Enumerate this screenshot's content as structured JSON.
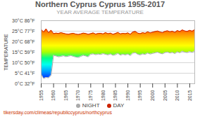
{
  "chart_data": {
    "type": "area",
    "title": "Northern Cyprus Cyprus 1955-2017",
    "subtitle": "YEAR AVERAGE TEMPERATURE",
    "ylabel": "TEMPERATURE",
    "caption": "tikersday.com/climeas/republiccyprus/northcyprus",
    "x": [
      1955,
      1956,
      1957,
      1958,
      1959,
      1960,
      1961,
      1962,
      1963,
      1964,
      1965,
      1966,
      1967,
      1968,
      1969,
      1970,
      1971,
      1972,
      1973,
      1974,
      1975,
      1976,
      1977,
      1978,
      1979,
      1980,
      1981,
      1982,
      1983,
      1984,
      1985,
      1986,
      1987,
      1988,
      1989,
      1990,
      1991,
      1992,
      1993,
      1994,
      1995,
      1996,
      1997,
      1998,
      1999,
      2000,
      2001,
      2002,
      2003,
      2004,
      2005,
      2006,
      2007,
      2008,
      2009,
      2010,
      2011,
      2012,
      2013,
      2014,
      2015,
      2016,
      2017
    ],
    "series": [
      {
        "name": "NIGHT",
        "color": "#aaaaaa",
        "values": [
          4.5,
          2.5,
          3.0,
          2.8,
          4.0,
          13.5,
          13.2,
          12.8,
          13.0,
          13.3,
          12.9,
          13.1,
          13.4,
          13.0,
          12.7,
          12.5,
          13.0,
          13.5,
          13.2,
          12.8,
          14.0,
          14.2,
          13.8,
          14.1,
          13.9,
          14.3,
          14.0,
          13.7,
          14.2,
          13.5,
          13.8,
          14.4,
          13.6,
          14.0,
          13.7,
          14.1,
          13.4,
          14.5,
          14.8,
          14.0,
          13.7,
          14.2,
          13.9,
          14.6,
          14.1,
          14.4,
          14.7,
          15.0,
          14.5,
          14.2,
          14.8,
          15.1,
          14.6,
          14.9,
          14.3,
          15.2,
          14.7,
          15.5,
          15.0,
          14.8,
          15.3,
          14.9,
          15.6
        ]
      },
      {
        "name": "DAY",
        "color": "#cc2200",
        "values": [
          25.8,
          24.6,
          26.1,
          24.2,
          25.5,
          23.8,
          24.1,
          23.9,
          24.3,
          24.0,
          23.7,
          23.5,
          23.8,
          24.0,
          23.6,
          23.4,
          23.7,
          24.1,
          23.9,
          23.5,
          23.8,
          24.2,
          23.6,
          23.9,
          24.0,
          23.7,
          24.3,
          23.8,
          24.1,
          23.5,
          23.9,
          24.4,
          23.7,
          24.0,
          23.8,
          24.2,
          23.5,
          24.6,
          24.9,
          24.1,
          23.8,
          24.3,
          24.0,
          24.7,
          24.2,
          24.5,
          24.8,
          25.1,
          24.6,
          24.3,
          24.9,
          25.2,
          24.7,
          25.0,
          24.4,
          25.3,
          24.8,
          25.6,
          25.1,
          24.9,
          25.4,
          25.0,
          25.7
        ]
      }
    ],
    "colors": [
      "#0000dd",
      "#0044ff",
      "#00aaff",
      "#00ffee",
      "#00ff88",
      "#aaff00",
      "#ffff00",
      "#ffcc00",
      "#ff8800",
      "#ff3300",
      "#cc0000"
    ],
    "xlim": [
      1955,
      2017
    ],
    "xticks": [
      1955,
      1960,
      1965,
      1970,
      1975,
      1980,
      1985,
      1990,
      1995,
      2000,
      2005,
      2010,
      2015
    ],
    "ylim": [
      0,
      30
    ],
    "yticks": [
      {
        "value": 0,
        "label": "0°C 32°F"
      },
      {
        "value": 5,
        "label": "5°C 41°F"
      },
      {
        "value": 10,
        "label": "10°C 50°F"
      },
      {
        "value": 15,
        "label": "15°C 59°F"
      },
      {
        "value": 20,
        "label": "20°C 68°F"
      },
      {
        "value": 25,
        "label": "25°C 77°F"
      },
      {
        "value": 30,
        "label": "30°C 86°F"
      }
    ],
    "grid": true,
    "legend": "bottom"
  }
}
